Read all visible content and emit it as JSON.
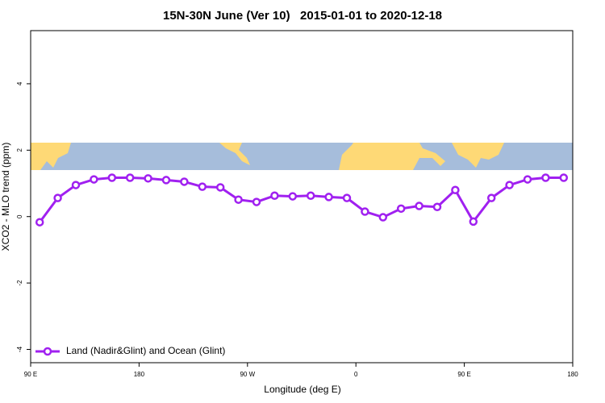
{
  "chart_data": {
    "type": "line",
    "title": "15N-30N June (Ver 10)   2015-01-01 to 2020-12-18",
    "x_label": "Longitude (deg E)",
    "y_label": "XCO2 - MLO trend (ppm)",
    "x": [
      97.5,
      112.5,
      127.5,
      142.5,
      157.5,
      172.5,
      187.5,
      202.5,
      217.5,
      232.5,
      247.5,
      262.5,
      277.5,
      292.5,
      307.5,
      322.5,
      337.5,
      352.5,
      367.5,
      382.5,
      397.5,
      412.5,
      427.5,
      442.5,
      457.5,
      472.5,
      487.5,
      502.5,
      517.5,
      532.5
    ],
    "series": [
      {
        "name": "Land (Nadir&Glint) and Ocean (Glint)",
        "color": "#a020f0",
        "values": [
          -0.17,
          0.56,
          0.95,
          1.12,
          1.17,
          1.17,
          1.15,
          1.1,
          1.05,
          0.9,
          0.88,
          0.51,
          0.44,
          0.63,
          0.61,
          0.63,
          0.59,
          0.56,
          0.15,
          -0.02,
          0.24,
          0.32,
          0.29,
          0.8,
          -0.15,
          0.56,
          0.95,
          1.12,
          1.17,
          1.17
        ]
      }
    ],
    "xlim": [
      90,
      540
    ],
    "xticks": [
      {
        "value": 90,
        "label": "90 E"
      },
      180,
      {
        "value": 270,
        "label": "90 W"
      },
      {
        "value": 360,
        "label": "0"
      },
      {
        "value": 450,
        "label": "90 E"
      },
      {
        "value": 540,
        "label": "180"
      }
    ],
    "ylim": [
      -4.4,
      5.6
    ],
    "yticks": [
      -4,
      -2,
      0,
      2,
      4
    ],
    "grid": false,
    "legend": "bottomleft"
  }
}
